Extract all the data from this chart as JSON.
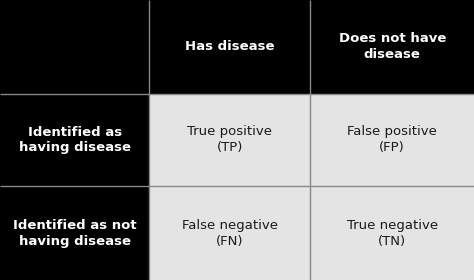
{
  "fig_width": 4.74,
  "fig_height": 2.8,
  "dpi": 100,
  "bg_color": "#000000",
  "cell_bg_light": "#e4e4e4",
  "header_col1": "Has disease",
  "header_col2": "Does not have\ndisease",
  "row1_col0": "Identified as\nhaving disease",
  "row1_col1": "True positive\n(TP)",
  "row1_col2": "False positive\n(FP)",
  "row2_col0": "Identified as not\nhaving disease",
  "row2_col1": "False negative\n(FN)",
  "row2_col2": "True negative\n(TN)",
  "white": "#ffffff",
  "dark_text": "#1a1a1a",
  "divider_color": "#888888",
  "divider_lw": 1.0,
  "header_fontsize": 9.5,
  "cell_fontsize": 9.5,
  "row_label_fontsize": 9.5,
  "col_splits": [
    0.0,
    0.315,
    0.655,
    1.0
  ],
  "row_splits": [
    0.0,
    0.335,
    0.665,
    1.0
  ]
}
